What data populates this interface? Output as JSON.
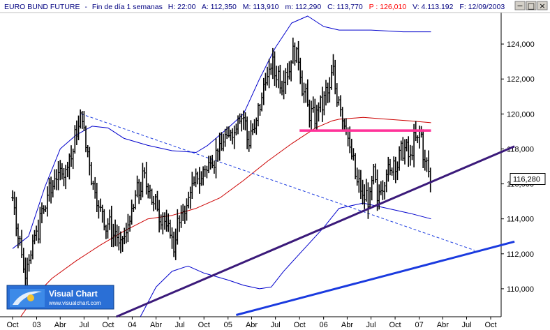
{
  "header": {
    "symbol": "EURO BUND FUTURE",
    "timeframe": "Fin de día 1 semanas",
    "h_label": "H: 22:00",
    "a_label": "A: 112,350",
    "m_label": "M: 113,910",
    "min_label": "m: 112,290",
    "c_label": "C: 113,770",
    "p_label": "P : 126,010",
    "v_label": "V: 4.113.192",
    "f_label": "F: 12/09/2003",
    "p_color": "#ff0000",
    "text_color": "#000080"
  },
  "window_buttons": {
    "minimize": "−",
    "maximize": "□",
    "close": "×"
  },
  "logo": {
    "title": "Visual Chart",
    "url": "www.visualchart.com"
  },
  "price_tag": "116,280",
  "colors": {
    "price_bars": "#000000",
    "bollinger": "#0000cc",
    "moving_average": "#cc0000",
    "resistance": "#ff3399",
    "upper_trendline": "#3b1a7a",
    "lower_trendline": "#1a3adf",
    "dashed_trendline": "#1a3adf",
    "logo_bg": "#2a6fd6"
  },
  "chart_data": {
    "type": "bar",
    "subtype": "ohlc",
    "x_axis": {
      "labels": [
        "Oct",
        "03",
        "Abr",
        "Jul",
        "Oct",
        "04",
        "Abr",
        "Jul",
        "Oct",
        "05",
        "Abr",
        "Jul",
        "Oct",
        "06",
        "Abr",
        "Jul",
        "Oct",
        "07",
        "Abr",
        "Jul",
        "Oct"
      ],
      "dates": [
        "2002-10",
        "2003-01",
        "2003-04",
        "2003-07",
        "2003-10",
        "2004-01",
        "2004-04",
        "2004-07",
        "2004-10",
        "2005-01",
        "2005-04",
        "2005-07",
        "2005-10",
        "2006-01",
        "2006-04",
        "2006-07",
        "2006-10",
        "2007-01",
        "2007-04",
        "2007-07",
        "2007-10"
      ]
    },
    "y_axis": {
      "ticks": [
        110000,
        112000,
        114000,
        116000,
        118000,
        120000,
        122000,
        124000
      ],
      "tick_labels": [
        "110,000",
        "112,000",
        "114,000",
        "116,000",
        "118,000",
        "120,000",
        "122,000",
        "124,000"
      ],
      "range": [
        108400,
        125800
      ]
    },
    "price_path": [
      [
        "2002-10-01",
        115200
      ],
      [
        "2002-11-15",
        111000
      ],
      [
        "2002-12-20",
        112500
      ],
      [
        "2003-01-20",
        114200
      ],
      [
        "2003-02-20",
        115600
      ],
      [
        "2003-03-20",
        116500
      ],
      [
        "2003-04-20",
        116800
      ],
      [
        "2003-05-20",
        118000
      ],
      [
        "2003-06-15",
        119800
      ],
      [
        "2003-06-25",
        119600
      ],
      [
        "2003-07-20",
        117200
      ],
      [
        "2003-08-20",
        115000
      ],
      [
        "2003-09-20",
        113800
      ],
      [
        "2003-10-20",
        113300
      ],
      [
        "2003-11-20",
        112400
      ],
      [
        "2003-12-20",
        113800
      ],
      [
        "2004-01-20",
        115500
      ],
      [
        "2004-02-20",
        116400
      ],
      [
        "2004-03-20",
        115000
      ],
      [
        "2004-04-20",
        114200
      ],
      [
        "2004-05-20",
        113300
      ],
      [
        "2004-06-10",
        112500
      ],
      [
        "2004-06-25",
        113800
      ],
      [
        "2004-07-20",
        114500
      ],
      [
        "2004-08-20",
        116000
      ],
      [
        "2004-09-20",
        116400
      ],
      [
        "2004-10-20",
        117200
      ],
      [
        "2004-11-20",
        117800
      ],
      [
        "2004-12-20",
        118500
      ],
      [
        "2005-01-20",
        119000
      ],
      [
        "2005-02-20",
        120200
      ],
      [
        "2005-03-20",
        118500
      ],
      [
        "2005-04-20",
        119500
      ],
      [
        "2005-05-20",
        121800
      ],
      [
        "2005-06-20",
        122800
      ],
      [
        "2005-07-20",
        121800
      ],
      [
        "2005-08-20",
        122600
      ],
      [
        "2005-09-15",
        123800
      ],
      [
        "2005-10-05",
        122300
      ],
      [
        "2005-10-20",
        121000
      ],
      [
        "2005-11-20",
        119700
      ],
      [
        "2005-12-20",
        120500
      ],
      [
        "2006-01-20",
        121300
      ],
      [
        "2006-02-05",
        122400
      ],
      [
        "2006-02-20",
        121200
      ],
      [
        "2006-03-20",
        119700
      ],
      [
        "2006-04-10",
        118200
      ],
      [
        "2006-04-20",
        117300
      ],
      [
        "2006-05-20",
        115600
      ],
      [
        "2006-06-20",
        115000
      ],
      [
        "2006-07-15",
        116600
      ],
      [
        "2006-07-25",
        115000
      ],
      [
        "2006-08-20",
        116400
      ],
      [
        "2006-09-20",
        117000
      ],
      [
        "2006-10-20",
        117500
      ],
      [
        "2006-11-05",
        118300
      ],
      [
        "2006-11-20",
        117400
      ],
      [
        "2006-12-20",
        118600
      ],
      [
        "2007-01-05",
        118900
      ],
      [
        "2007-01-20",
        117500
      ],
      [
        "2007-02-05",
        116600
      ],
      [
        "2007-02-15",
        116280
      ]
    ],
    "series": [
      {
        "name": "",
        "kind": "upper-band",
        "style": "blue",
        "points": [
          [
            "2002-10-01",
            112300
          ],
          [
            "2002-12-01",
            113000
          ],
          [
            "2003-02-01",
            115800
          ],
          [
            "2003-04-01",
            118000
          ],
          [
            "2003-06-01",
            118800
          ],
          [
            "2003-08-01",
            119300
          ],
          [
            "2003-10-01",
            119200
          ],
          [
            "2003-12-01",
            118600
          ],
          [
            "2004-03-01",
            118200
          ],
          [
            "2004-06-01",
            117900
          ],
          [
            "2004-09-01",
            117800
          ],
          [
            "2004-10-15",
            118200
          ],
          [
            "2005-01-01",
            119200
          ],
          [
            "2005-03-01",
            120000
          ],
          [
            "2005-05-01",
            122000
          ],
          [
            "2005-07-01",
            123800
          ],
          [
            "2005-09-01",
            125200
          ],
          [
            "2005-11-01",
            125600
          ],
          [
            "2006-01-01",
            125000
          ],
          [
            "2006-03-01",
            124800
          ],
          [
            "2006-07-01",
            124800
          ],
          [
            "2006-11-01",
            124700
          ],
          [
            "2007-02-15",
            124700
          ]
        ]
      },
      {
        "name": "",
        "kind": "lower-band",
        "style": "blue",
        "points": [
          [
            "2004-02-01",
            108400
          ],
          [
            "2004-04-01",
            110100
          ],
          [
            "2004-06-01",
            111000
          ],
          [
            "2004-08-01",
            111300
          ],
          [
            "2004-10-01",
            110900
          ],
          [
            "2005-01-01",
            110500
          ],
          [
            "2005-03-01",
            110200
          ],
          [
            "2005-05-01",
            110000
          ],
          [
            "2005-06-15",
            110100
          ],
          [
            "2005-08-01",
            111000
          ],
          [
            "2005-10-01",
            112000
          ],
          [
            "2006-01-01",
            113500
          ],
          [
            "2006-03-01",
            114600
          ],
          [
            "2006-06-01",
            114900
          ],
          [
            "2006-09-01",
            114600
          ],
          [
            "2006-12-01",
            114300
          ],
          [
            "2007-02-15",
            114000
          ]
        ]
      },
      {
        "name": "",
        "kind": "moving-average",
        "style": "red",
        "points": [
          [
            "2002-11-01",
            108400
          ],
          [
            "2003-01-01",
            109700
          ],
          [
            "2003-03-01",
            110600
          ],
          [
            "2003-06-01",
            111600
          ],
          [
            "2003-09-01",
            112500
          ],
          [
            "2003-12-01",
            113300
          ],
          [
            "2004-03-01",
            114000
          ],
          [
            "2004-06-01",
            114200
          ],
          [
            "2004-09-01",
            114600
          ],
          [
            "2004-12-01",
            115200
          ],
          [
            "2005-03-01",
            116200
          ],
          [
            "2005-06-01",
            117300
          ],
          [
            "2005-09-01",
            118300
          ],
          [
            "2005-12-01",
            119200
          ],
          [
            "2006-02-01",
            119600
          ],
          [
            "2006-03-01",
            119700
          ],
          [
            "2006-06-01",
            119800
          ],
          [
            "2006-09-01",
            119700
          ],
          [
            "2006-12-01",
            119600
          ],
          [
            "2007-02-15",
            119500
          ]
        ]
      },
      {
        "name": "",
        "kind": "resistance",
        "style": "pink",
        "points": [
          [
            "2005-10-01",
            119050
          ],
          [
            "2007-02-15",
            119050
          ]
        ]
      },
      {
        "name": "",
        "kind": "upper-trendline",
        "style": "purple",
        "points": [
          [
            "2003-11-01",
            108400
          ],
          [
            "2007-12-31",
            118150
          ]
        ]
      },
      {
        "name": "",
        "kind": "lower-trendline",
        "style": "blue-thick",
        "points": [
          [
            "2005-02-01",
            108500
          ],
          [
            "2007-12-31",
            112700
          ]
        ]
      },
      {
        "name": "",
        "kind": "dashed-trendline",
        "style": "blue-dashed",
        "points": [
          [
            "2003-06-20",
            120000
          ],
          [
            "2007-08-01",
            112200
          ]
        ]
      }
    ]
  }
}
